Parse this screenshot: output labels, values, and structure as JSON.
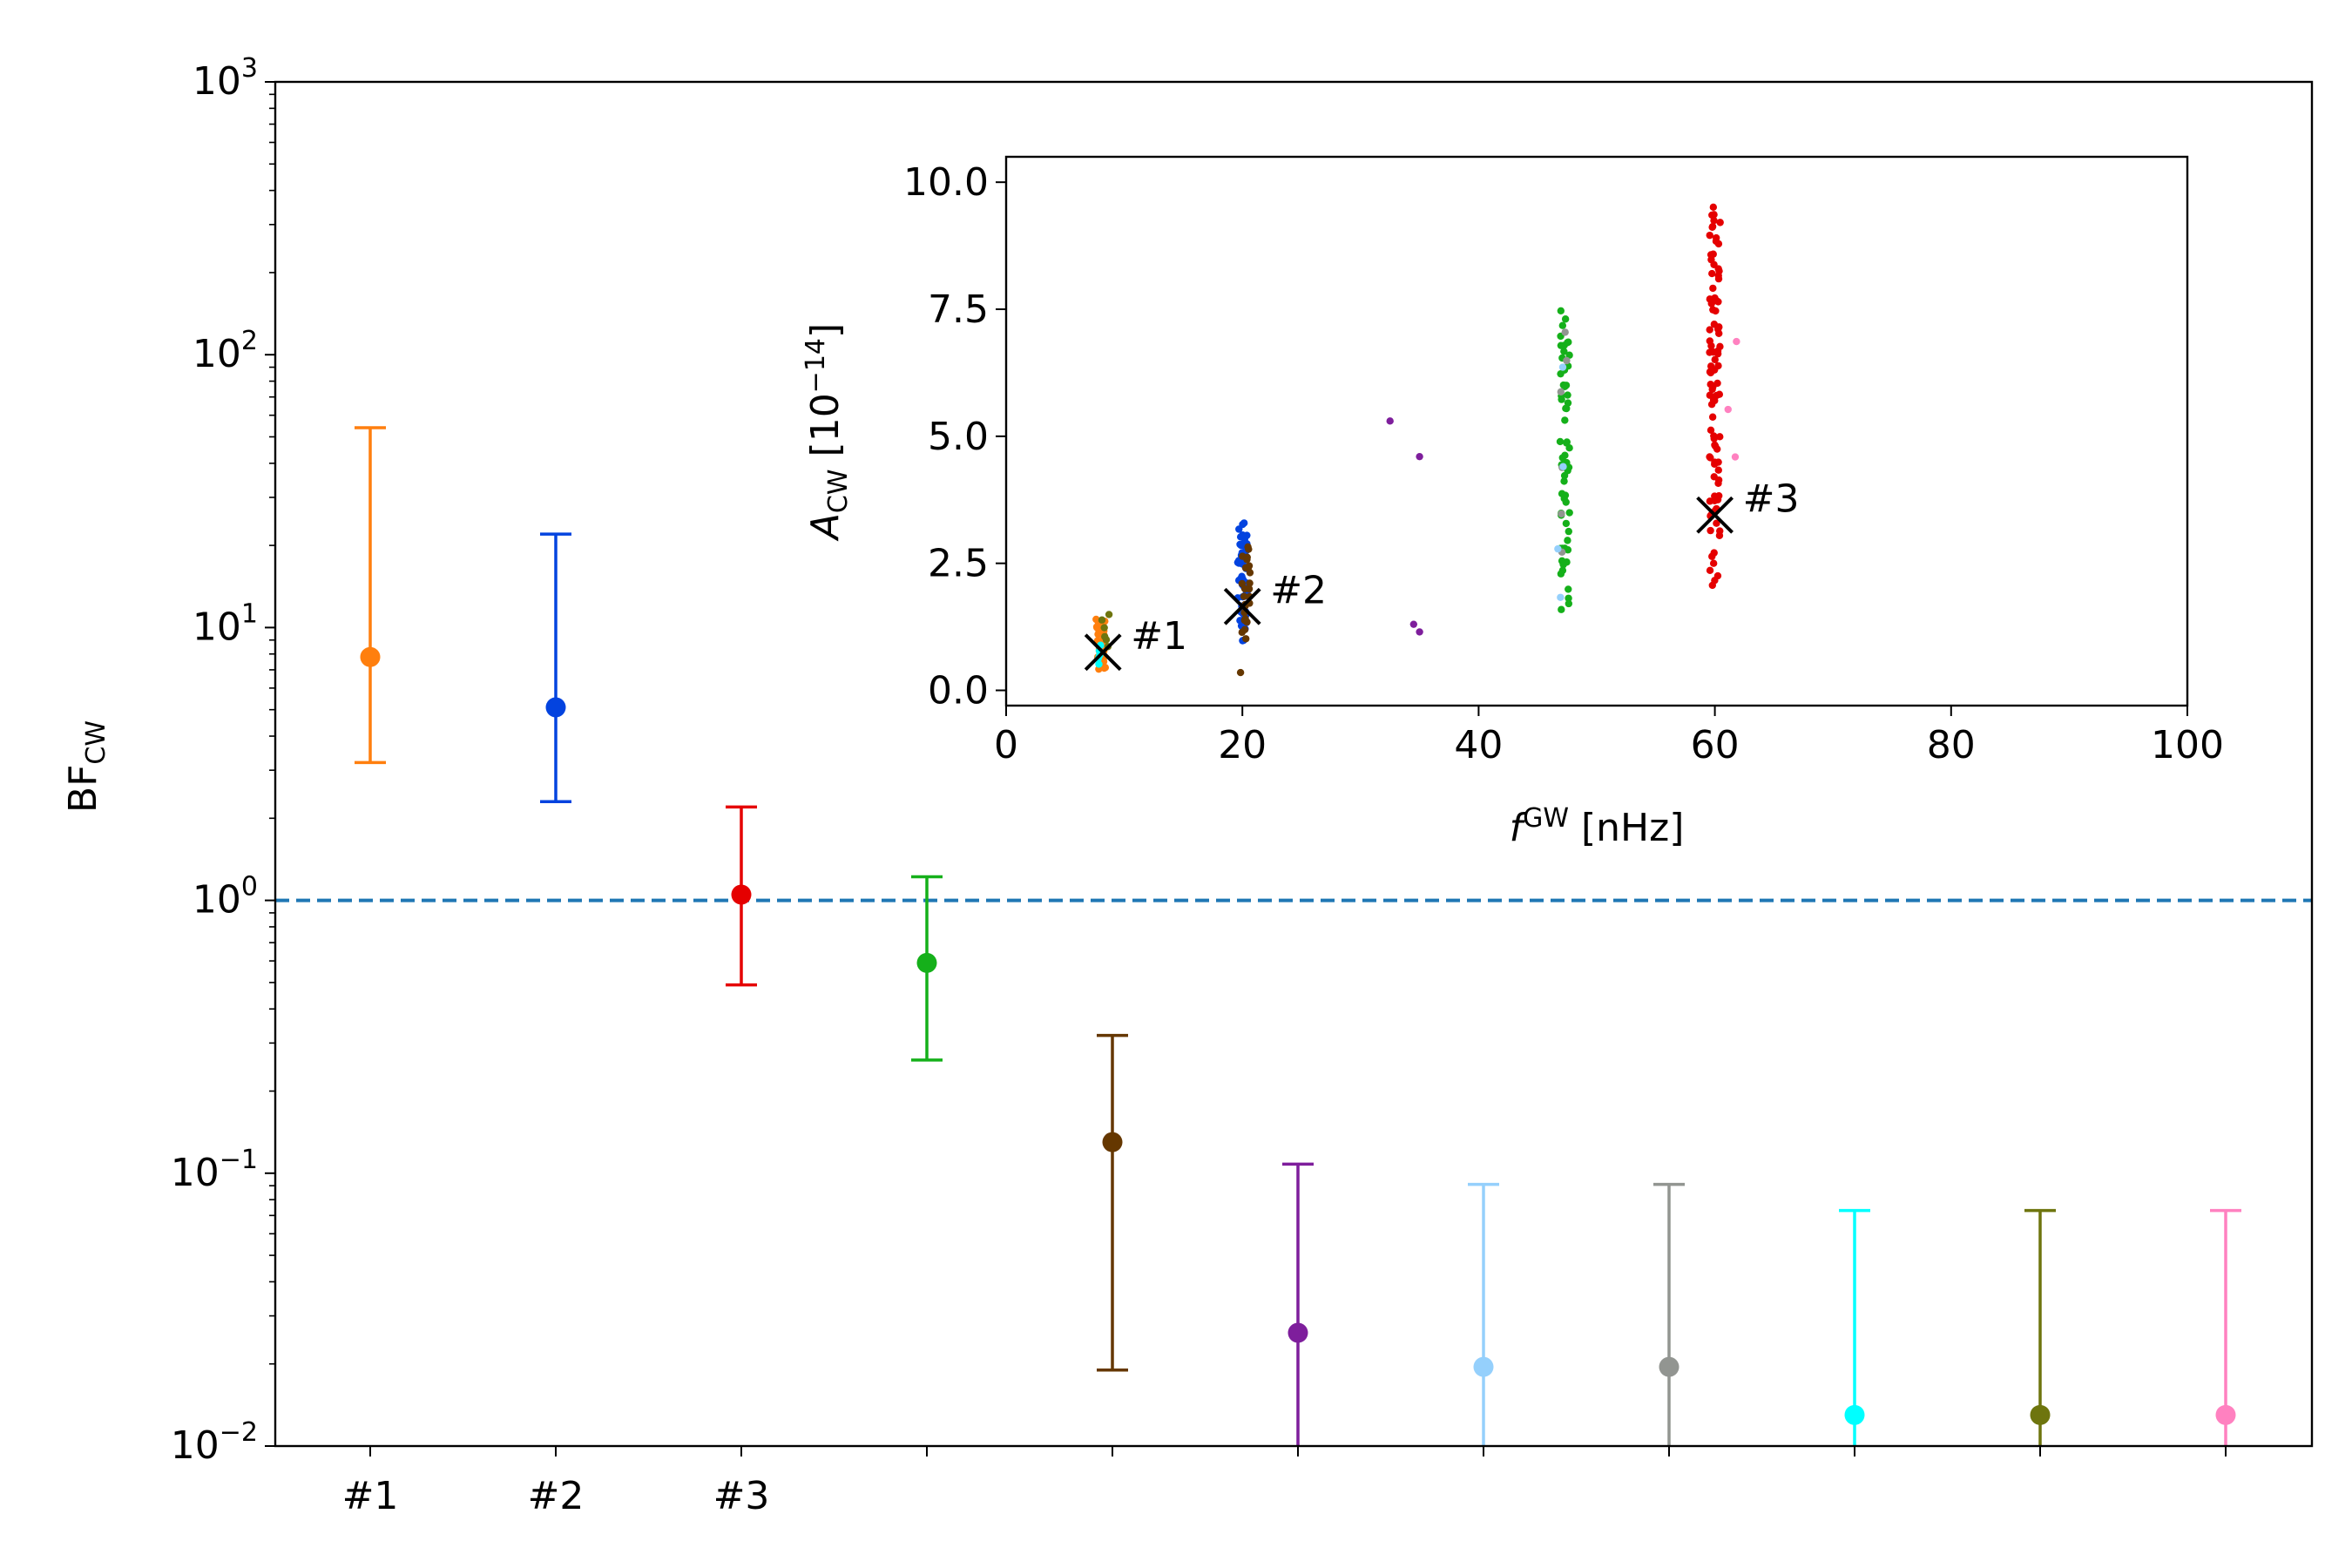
{
  "chart_data": [
    {
      "type": "scatter",
      "variant": "errorbar",
      "title": "",
      "xlabel": "",
      "ylabel": {
        "base": "BF",
        "sub": "CW"
      },
      "yscale": "log",
      "ylim": [
        0.01,
        1000
      ],
      "yticks": [
        {
          "value": 0.01,
          "base": "10",
          "exp": "−2"
        },
        {
          "value": 0.1,
          "base": "10",
          "exp": "−1"
        },
        {
          "value": 1,
          "base": "10",
          "exp": "0"
        },
        {
          "value": 10,
          "base": "10",
          "exp": "1"
        },
        {
          "value": 100,
          "base": "10",
          "exp": "2"
        },
        {
          "value": 1000,
          "base": "10",
          "exp": "3"
        }
      ],
      "reference_line": {
        "y": 1,
        "style": "dashed",
        "color": "#1f77b4"
      },
      "candidates": [
        {
          "label": "#1",
          "value": 7.8,
          "lower": 3.2,
          "upper": 54,
          "color": "#ff7f0e"
        },
        {
          "label": "#2",
          "value": 5.1,
          "lower": 2.3,
          "upper": 22,
          "color": "#0343df"
        },
        {
          "label": "#3",
          "value": 1.05,
          "lower": 0.49,
          "upper": 2.2,
          "color": "#e50000"
        },
        {
          "label": "",
          "value": 0.59,
          "lower": 0.26,
          "upper": 1.22,
          "color": "#15b01a"
        },
        {
          "label": "",
          "value": 0.13,
          "lower": 0.019,
          "upper": 0.32,
          "color": "#653700"
        },
        {
          "label": "",
          "value": 0.026,
          "lower": 0.01,
          "upper": 0.108,
          "color": "#7e1e9c"
        },
        {
          "label": "",
          "value": 0.0195,
          "lower": 0.01,
          "upper": 0.091,
          "color": "#95d0fc"
        },
        {
          "label": "",
          "value": 0.0195,
          "lower": 0.01,
          "upper": 0.091,
          "color": "#929591"
        },
        {
          "label": "",
          "value": 0.013,
          "lower": 0.01,
          "upper": 0.073,
          "color": "#00ffff"
        },
        {
          "label": "",
          "value": 0.013,
          "lower": 0.01,
          "upper": 0.073,
          "color": "#6e750e"
        },
        {
          "label": "",
          "value": 0.013,
          "lower": 0.01,
          "upper": 0.073,
          "color": "#ff81c0"
        }
      ]
    },
    {
      "type": "scatter",
      "title": "",
      "xlabel": {
        "italic": "f",
        "sup": "GW",
        "rest": " [nHz]"
      },
      "ylabel": {
        "italic": "A",
        "sub": "CW",
        "rest": " [10",
        "sup": "−14",
        "close": "]"
      },
      "xlim": [
        0,
        100
      ],
      "ylim": [
        -0.3,
        10.5
      ],
      "xticks": [
        "0",
        "20",
        "40",
        "60",
        "80",
        "100"
      ],
      "yticks": [
        "0.0",
        "2.5",
        "5.0",
        "7.5",
        "10.0"
      ],
      "markers": [
        {
          "label": "#1",
          "x": 8.2,
          "y": 0.75
        },
        {
          "label": "#2",
          "x": 20.0,
          "y": 1.65
        },
        {
          "label": "#3",
          "x": 60.0,
          "y": 3.45
        }
      ],
      "clusters": [
        {
          "color": "#ff7f0e",
          "x": 8.0,
          "xspread": 0.8,
          "ymin": 0.3,
          "ymax": 1.5,
          "count": 30
        },
        {
          "color": "#00ffff",
          "x": 8.0,
          "xspread": 0.4,
          "ymin": 0.5,
          "ymax": 0.9,
          "count": 5
        },
        {
          "color": "#6e750e",
          "x": 8.3,
          "xspread": 0.9,
          "ymin": 0.8,
          "ymax": 1.55,
          "count": 6
        },
        {
          "color": "#0343df",
          "x": 20.0,
          "xspread": 0.8,
          "ymin": 0.9,
          "ymax": 3.45,
          "count": 55
        },
        {
          "color": "#653700",
          "x": 20.3,
          "xspread": 0.7,
          "ymin": 0.9,
          "ymax": 3.0,
          "count": 25
        },
        {
          "color": "#653700",
          "x": 19.8,
          "xspread": 0.1,
          "ymin": 0.35,
          "ymax": 0.35,
          "count": 1
        },
        {
          "color": "#15b01a",
          "x": 47.3,
          "xspread": 0.8,
          "ymin": 1.3,
          "ymax": 7.8,
          "count": 60
        },
        {
          "color": "#929591",
          "x": 47.2,
          "xspread": 0.6,
          "ymin": 2.5,
          "ymax": 7.8,
          "count": 6
        },
        {
          "color": "#95d0fc",
          "x": 47.0,
          "xspread": 0.8,
          "ymin": 1.3,
          "ymax": 6.5,
          "count": 4
        },
        {
          "color": "#e50000",
          "x": 60.0,
          "xspread": 0.9,
          "ymin": 1.9,
          "ymax": 10.0,
          "count": 95
        },
        {
          "color": "#ff81c0",
          "x": 61.5,
          "xspread": 1.0,
          "ymin": 4.2,
          "ymax": 7.0,
          "count": 3
        }
      ],
      "points": [
        {
          "color": "#7e1e9c",
          "x": 32.5,
          "y": 5.3
        },
        {
          "color": "#7e1e9c",
          "x": 35.0,
          "y": 4.6
        },
        {
          "color": "#7e1e9c",
          "x": 34.5,
          "y": 1.3
        },
        {
          "color": "#7e1e9c",
          "x": 35.0,
          "y": 1.15
        }
      ]
    }
  ]
}
